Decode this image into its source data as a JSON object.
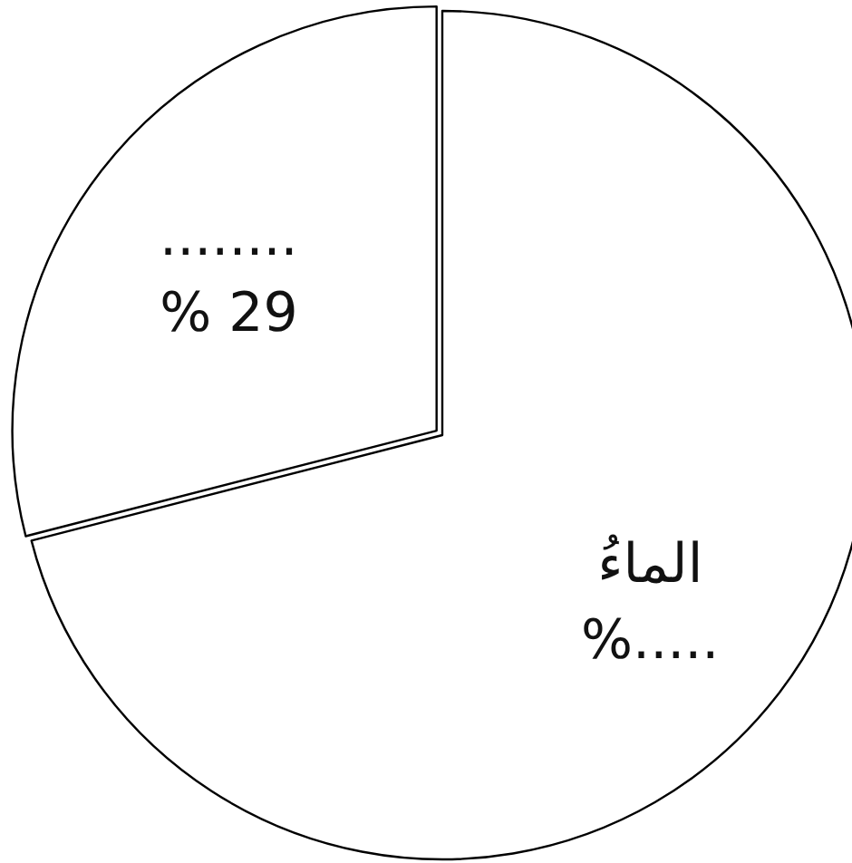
{
  "chart_data": {
    "type": "pie",
    "categories": [
      "الماءُ",
      "........"
    ],
    "values": [
      71,
      29
    ],
    "colors": [
      "#ffffff",
      "#ffffff"
    ],
    "value_labels": [
      "%.....",
      "% 29"
    ]
  }
}
